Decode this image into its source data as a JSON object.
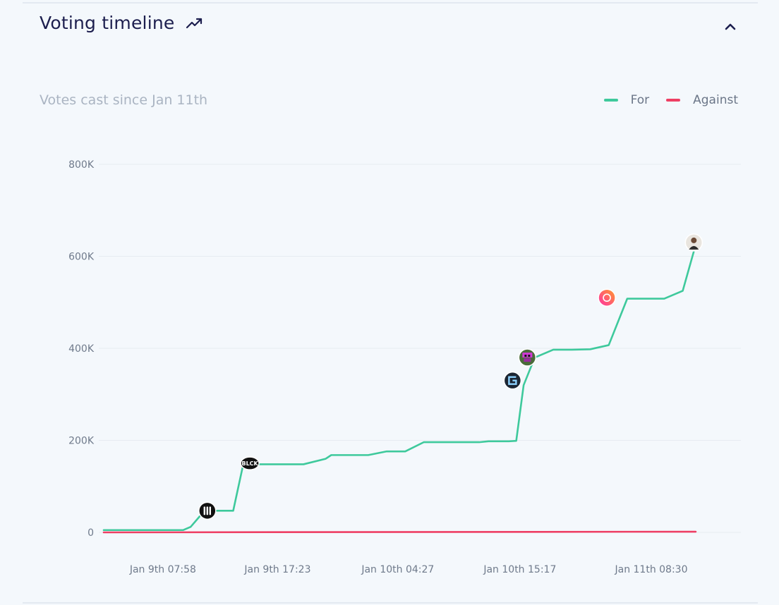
{
  "header": {
    "title": "Voting timeline",
    "trend_icon": "trending-up-icon",
    "collapse_icon": "chevron-up-icon"
  },
  "colors": {
    "for": "#3ec99c",
    "against": "#ee3f64",
    "grid": "#e6ebf1"
  },
  "chart_data": {
    "type": "line",
    "title": "Votes cast since Jan 11th",
    "legend_position": "top-right",
    "grid": true,
    "y_ticks": [
      "0",
      "200K",
      "400K",
      "600K",
      "800K"
    ],
    "ylim": [
      0,
      800000
    ],
    "x_ticks": [
      "Jan 9th 07:58",
      "Jan 9th 17:23",
      "Jan 10th 04:27",
      "Jan 10th 15:17",
      "Jan 11th 08:30"
    ],
    "x_tick_index": [
      1.9,
      8.1,
      14.6,
      21.2,
      28.3
    ],
    "x_index_range": [
      -1.3,
      32
    ],
    "series": [
      {
        "name": "For",
        "color": "#3ec99c",
        "x": [
          -1.3,
          0,
          1,
          2,
          2.5,
          3,
          3.4,
          4,
          4.7,
          5,
          5.7,
          6.2,
          7,
          8,
          9,
          9.5,
          10.7,
          11,
          12,
          13,
          14,
          15,
          16,
          17,
          18,
          19,
          19.5,
          20,
          20.6,
          21,
          21.4,
          22,
          23,
          24,
          25,
          26,
          27,
          28,
          29,
          30,
          30.7
        ],
        "values": [
          5000,
          5000,
          5000,
          5000,
          5000,
          5000,
          12000,
          40000,
          47000,
          47000,
          47000,
          140000,
          148000,
          148000,
          148000,
          148000,
          160000,
          168000,
          168000,
          168000,
          176000,
          176000,
          196000,
          196000,
          196000,
          196000,
          198000,
          198000,
          198000,
          199000,
          320000,
          380000,
          397000,
          397000,
          398000,
          407000,
          508000,
          508000,
          508000,
          525000,
          625000
        ]
      },
      {
        "name": "Against",
        "color": "#ee3f64",
        "x": [
          -1.3,
          30.7
        ],
        "values": [
          0,
          1500
        ]
      }
    ],
    "voter_markers": [
      {
        "x": 4.3,
        "y": 47000,
        "icon": "pause-bars-avatar-icon",
        "label": ""
      },
      {
        "x": 6.6,
        "y": 150000,
        "icon": "blck-logo-avatar-icon",
        "label": "BLCK"
      },
      {
        "x": 20.8,
        "y": 330000,
        "icon": "g-logo-avatar-icon",
        "label": ""
      },
      {
        "x": 21.6,
        "y": 380000,
        "icon": "pixel-avatar-icon",
        "label": ""
      },
      {
        "x": 25.9,
        "y": 510000,
        "icon": "gradient-hand-avatar-icon",
        "label": ""
      },
      {
        "x": 30.6,
        "y": 630000,
        "icon": "person-photo-avatar-icon",
        "label": ""
      }
    ]
  }
}
